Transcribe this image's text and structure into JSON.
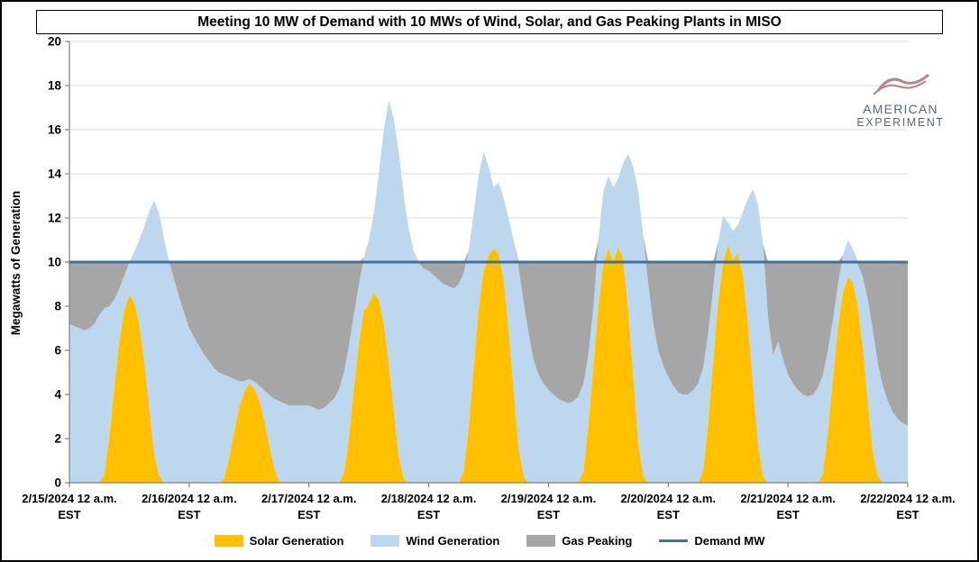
{
  "logo": {
    "line1": "AMERICAN",
    "line2": "EXPERIMENT",
    "text_color": "#5a6875",
    "swoosh_color": "#b5878d"
  },
  "chart_data": {
    "type": "area",
    "stacked": true,
    "title": "Meeting 10 MW of Demand with 10 MWs of Wind, Solar, and Gas Peaking Plants in MISO",
    "xlabel": "",
    "ylabel": "Megawatts of Generation",
    "ylim": [
      0,
      20
    ],
    "y_ticks": [
      0,
      2,
      4,
      6,
      8,
      10,
      12,
      14,
      16,
      18,
      20
    ],
    "grid": true,
    "legend_position": "bottom",
    "x_unit": "hours from 2/15/2024 12 a.m. EST, hourly resolution over 7 days",
    "x_tick_labels": [
      {
        "line1": "2/15/2024 12 a.m.",
        "line2": "EST"
      },
      {
        "line1": "2/16/2024 12 a.m.",
        "line2": "EST"
      },
      {
        "line1": "2/17/2024 12 a.m.",
        "line2": "EST"
      },
      {
        "line1": "2/18/2024 12 a.m.",
        "line2": "EST"
      },
      {
        "line1": "2/19/2024 12 a.m.",
        "line2": "EST"
      },
      {
        "line1": "2/20/2024 12 a.m.",
        "line2": "EST"
      },
      {
        "line1": "2/21/2024 12 a.m.",
        "line2": "EST"
      },
      {
        "line1": "2/22/2024 12 a.m.",
        "line2": "EST"
      }
    ],
    "demand_mw": 10,
    "gas_peaking_rule": "Gas Peaking fills the gap: max(0, demand_mw - solar - wind); stack order bottom-to-top is solar, wind, gas",
    "series": [
      {
        "name": "Solar Generation",
        "color": "#FFC000",
        "values": [
          0,
          0,
          0,
          0,
          0,
          0,
          0,
          0.4,
          2.1,
          4.3,
          6.4,
          7.8,
          8.5,
          8.2,
          7.2,
          5.5,
          3.4,
          1.3,
          0.3,
          0,
          0,
          0,
          0,
          0,
          0,
          0,
          0,
          0,
          0,
          0,
          0,
          0.2,
          1.1,
          2.3,
          3.4,
          4.1,
          4.5,
          4.3,
          3.8,
          2.9,
          1.8,
          0.7,
          0.1,
          0,
          0,
          0,
          0,
          0,
          0,
          0,
          0,
          0,
          0,
          0,
          0,
          0.4,
          2.0,
          4.2,
          6.3,
          7.8,
          8.1,
          8.6,
          8.3,
          7.2,
          5.4,
          3.3,
          1.2,
          0.2,
          0,
          0,
          0,
          0,
          0,
          0,
          0,
          0,
          0,
          0,
          0,
          0.5,
          2.5,
          5.2,
          7.8,
          9.6,
          10.3,
          10.6,
          10.4,
          9.3,
          7.0,
          4.3,
          1.6,
          0.3,
          0,
          0,
          0,
          0,
          0,
          0,
          0,
          0,
          0,
          0,
          0,
          0.5,
          2.6,
          5.3,
          8.0,
          9.9,
          10.6,
          10.0,
          10.7,
          10.1,
          7.8,
          4.8,
          1.8,
          0.3,
          0,
          0,
          0,
          0,
          0,
          0,
          0,
          0,
          0,
          0,
          0,
          0.5,
          2.7,
          5.5,
          8.2,
          10.0,
          10.8,
          10.1,
          10.4,
          9.4,
          7.2,
          4.4,
          1.7,
          0.3,
          0,
          0,
          0,
          0,
          0,
          0,
          0,
          0,
          0,
          0,
          0,
          0.4,
          2.3,
          4.7,
          7.0,
          8.6,
          9.3,
          9.1,
          8.0,
          6.1,
          3.7,
          1.4,
          0.3,
          0,
          0,
          0,
          0,
          0,
          0
        ]
      },
      {
        "name": "Wind Generation",
        "color": "#BDD7EE",
        "values": [
          7.2,
          7.1,
          7.0,
          6.9,
          7.0,
          7.2,
          7.6,
          7.5,
          5.9,
          4.0,
          2.4,
          1.6,
          1.5,
          2.3,
          3.8,
          6.1,
          8.9,
          11.5,
          11.9,
          11.0,
          10.0,
          9.2,
          8.4,
          7.7,
          7.0,
          6.6,
          6.2,
          5.8,
          5.5,
          5.2,
          5.0,
          4.7,
          3.7,
          2.4,
          1.2,
          0.5,
          0.2,
          0.3,
          0.6,
          1.3,
          2.2,
          3.1,
          3.6,
          3.6,
          3.5,
          3.5,
          3.5,
          3.5,
          3.5,
          3.4,
          3.3,
          3.4,
          3.6,
          3.8,
          4.2,
          4.6,
          4.2,
          3.4,
          2.7,
          2.4,
          2.9,
          3.6,
          5.7,
          8.8,
          11.9,
          13.2,
          13.8,
          12.8,
          11.5,
          10.5,
          10.0,
          9.7,
          9.6,
          9.4,
          9.2,
          9.0,
          8.9,
          8.8,
          9.0,
          9.0,
          8.0,
          7.0,
          6.1,
          5.4,
          4.0,
          2.8,
          3.2,
          3.6,
          5.0,
          6.7,
          8.2,
          7.9,
          6.8,
          5.6,
          4.9,
          4.5,
          4.2,
          4.0,
          3.8,
          3.7,
          3.6,
          3.7,
          3.9,
          4.0,
          3.2,
          2.7,
          3.0,
          3.3,
          3.3,
          3.4,
          3.1,
          4.4,
          7.1,
          9.5,
          11.4,
          10.9,
          9.0,
          7.2,
          6.0,
          5.3,
          4.8,
          4.4,
          4.1,
          4.0,
          4.0,
          4.2,
          4.5,
          4.7,
          4.1,
          3.3,
          2.7,
          2.1,
          1.0,
          1.3,
          1.3,
          2.9,
          5.7,
          8.9,
          10.9,
          10.5,
          7.5,
          5.8,
          6.4,
          5.6,
          4.9,
          4.5,
          4.2,
          4.0,
          3.9,
          4.0,
          4.3,
          4.5,
          3.7,
          2.7,
          2.0,
          1.7,
          1.7,
          1.5,
          1.9,
          3.2,
          4.6,
          5.5,
          5.1,
          4.4,
          3.7,
          3.2,
          2.9,
          2.7,
          2.6
        ]
      },
      {
        "name": "Gas Peaking",
        "color": "#A6A6A6",
        "derived": true
      },
      {
        "name": "Demand MW",
        "color": "#41719C",
        "value": 10
      }
    ]
  }
}
